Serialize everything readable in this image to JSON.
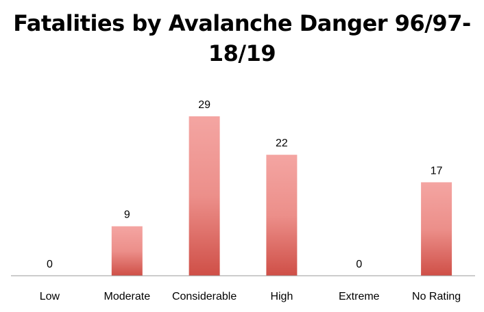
{
  "chart_data": {
    "type": "bar",
    "title_lines": [
      "Fatalities by Avalanche Danger 96/97-",
      "18/19"
    ],
    "categories": [
      "Low",
      "Moderate",
      "Considerable",
      "High",
      "Extreme",
      "No Rating"
    ],
    "values": [
      0,
      9,
      29,
      22,
      0,
      17
    ],
    "data_labels": [
      "0",
      "9",
      "29",
      "22",
      "0",
      "17"
    ],
    "xlabel": "",
    "ylabel": "",
    "ylim": [
      0,
      30
    ],
    "grid": false,
    "legend": "none",
    "colors": {
      "bar_top": "#f4a5a2",
      "bar_mid": "#ec8f8a",
      "bar_bottom": "#cf4f47",
      "axis": "#999999"
    }
  }
}
